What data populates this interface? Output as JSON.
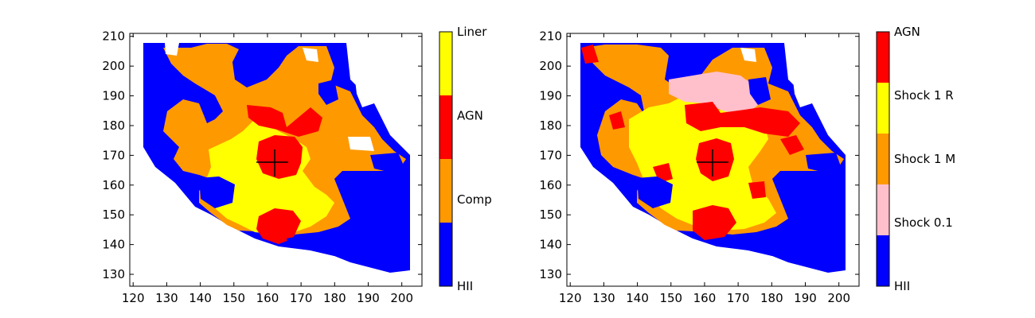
{
  "chart_data": [
    {
      "type": "heatmap",
      "title": "",
      "xlabel": "",
      "ylabel": "",
      "xlim": [
        119,
        206
      ],
      "ylim": [
        126,
        211
      ],
      "xticks": [
        120,
        130,
        140,
        150,
        160,
        170,
        180,
        190,
        200
      ],
      "yticks": [
        130,
        140,
        150,
        160,
        170,
        180,
        190,
        200,
        210
      ],
      "grid": false,
      "marker": {
        "symbol": "+",
        "x": 163,
        "y": 167
      },
      "colorbar": {
        "categories": [
          "HII",
          "Comp",
          "AGN",
          "Liner"
        ],
        "colors": [
          "#0000ff",
          "#ff9900",
          "#ff0000",
          "#ffff00"
        ]
      },
      "regions": [
        {
          "category": "HII",
          "color": "#0000ff",
          "description_points": [
            [
              128,
              200
            ],
            [
              135,
              180
            ],
            [
              140,
              158
            ],
            [
              180,
              200
            ],
            [
              195,
              145
            ]
          ]
        },
        {
          "category": "Comp",
          "color": "#ff9900",
          "description_points": [
            [
              150,
              190
            ],
            [
              175,
              160
            ],
            [
              185,
              175
            ]
          ]
        },
        {
          "category": "AGN",
          "color": "#ff0000",
          "description_points": [
            [
              162,
              167
            ],
            [
              163,
              185
            ],
            [
              170,
              180
            ],
            [
              160,
              145
            ]
          ]
        },
        {
          "category": "Liner",
          "color": "#ffff00",
          "description_points": [
            [
              155,
              160
            ],
            [
              170,
              152
            ],
            [
              150,
              168
            ]
          ]
        }
      ]
    },
    {
      "type": "heatmap",
      "title": "",
      "xlabel": "",
      "ylabel": "",
      "xlim": [
        119,
        206
      ],
      "ylim": [
        126,
        211
      ],
      "xticks": [
        120,
        130,
        140,
        150,
        160,
        170,
        180,
        190,
        200
      ],
      "yticks": [
        130,
        140,
        150,
        160,
        170,
        180,
        190,
        200,
        210
      ],
      "grid": false,
      "marker": {
        "symbol": "+",
        "x": 163,
        "y": 167
      },
      "colorbar": {
        "categories": [
          "HII",
          "Shock 0.1",
          "Shock 1 M",
          "Shock 1 R",
          "AGN"
        ],
        "colors": [
          "#0000ff",
          "#ffc0cb",
          "#ff9900",
          "#ffff00",
          "#ff0000"
        ]
      }
    }
  ]
}
